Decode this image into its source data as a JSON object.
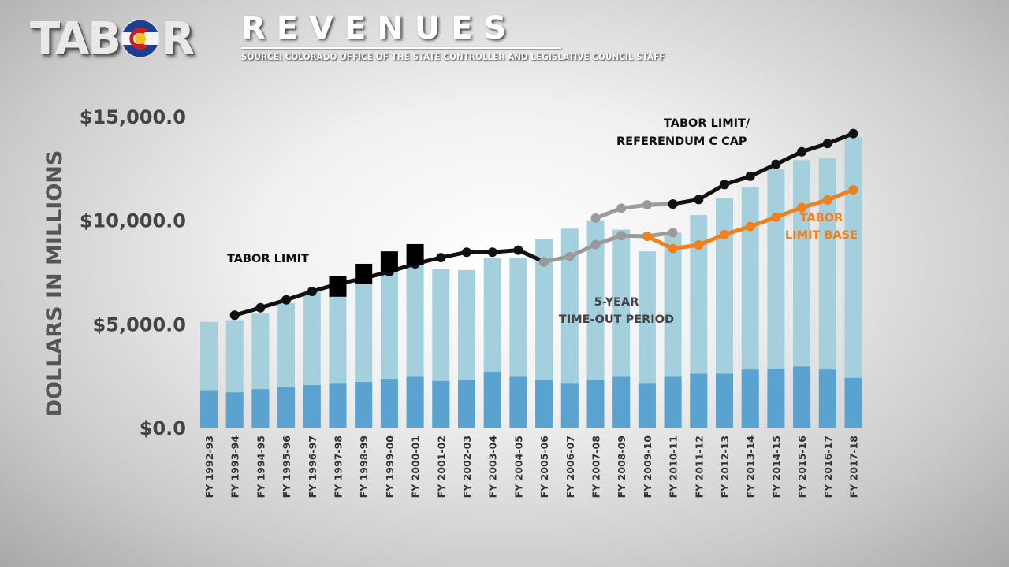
{
  "header": {
    "logo_text_left": "TAB",
    "logo_text_right": "R",
    "title": "REVENUES",
    "source": "SOURCE: COLORADO OFFICE OF THE STATE CONTROLLER AND LEGISLATIVE COUNCIL STAFF"
  },
  "colors": {
    "bar_upper": "#a4d0de",
    "bar_lower": "#5aa2cf",
    "tabor_limit": "#111111",
    "timeout_line": "#9a9a9a",
    "limit_base": "#f07f1e",
    "excess_marker": "#000000"
  },
  "chart_data": {
    "type": "bar",
    "ylabel": "DOLLARS IN MILLIONS",
    "ylim": [
      0,
      15000
    ],
    "y_ticks": [
      0,
      5000,
      10000,
      15000
    ],
    "y_tick_labels": [
      "$0.0",
      "$5,000.0",
      "$10,000.0",
      "$15,000.0"
    ],
    "categories": [
      "FY 1992-93",
      "FY 1993-94",
      "FY 1994-95",
      "FY 1995-96",
      "FY 1996-97",
      "FY 1997-98",
      "FY 1998-99",
      "FY 1999-00",
      "FY 2000-01",
      "FY 2001-02",
      "FY 2002-03",
      "FY 2003-04",
      "FY 2004-05",
      "FY 2005-06",
      "FY 2006-07",
      "FY 2007-08",
      "FY 2008-09",
      "FY 2009-10",
      "FY 2010-11",
      "FY 2011-12",
      "FY 2012-13",
      "FY 2013-14",
      "FY 2014-15",
      "FY 2015-16",
      "FY 2016-17",
      "FY 2017-18"
    ],
    "series": [
      {
        "values": [
          5100,
          5180,
          5500,
          6000,
          6550,
          7000,
          7400,
          7900,
          8200,
          7650,
          7600,
          8200,
          8200,
          9100,
          9600,
          10000,
          9550,
          8500,
          9400,
          10250,
          11050,
          11600,
          12450,
          12900,
          13000,
          14000
        ]
      },
      {
        "values": [
          1800,
          1700,
          1850,
          1950,
          2050,
          2150,
          2200,
          2350,
          2450,
          2250,
          2300,
          2700,
          2450,
          2300,
          2150,
          2300,
          2450,
          2150,
          2450,
          2600,
          2600,
          2800,
          2850,
          2950,
          2800,
          2400
        ]
      }
    ],
    "lines": [
      {
        "name": "TABOR LIMIT",
        "x_index": [
          1,
          2,
          3,
          4,
          5,
          6,
          7,
          8,
          9,
          10,
          11,
          12,
          13
        ],
        "values": [
          5420,
          5780,
          6160,
          6570,
          6930,
          7200,
          7520,
          7900,
          8200,
          8460,
          8460,
          8560,
          8000
        ]
      },
      {
        "x_index": [
          13,
          14,
          15,
          16,
          17,
          18
        ],
        "values": [
          8000,
          8250,
          8830,
          9260,
          9230,
          9400
        ]
      },
      {
        "x_index": [
          15,
          16,
          17,
          18
        ],
        "values": [
          10100,
          10580,
          10740,
          10780
        ]
      },
      {
        "name": "TABOR LIMIT/ REFERENDUM C CAP",
        "x_index": [
          18,
          19,
          20,
          21,
          22,
          23,
          24,
          25
        ],
        "values": [
          10780,
          11000,
          11720,
          12120,
          12700,
          13300,
          13700,
          14180
        ]
      },
      {
        "name": "TABOR LIMIT BASE",
        "x_index": [
          17,
          18,
          19,
          20,
          21,
          22,
          23,
          24,
          25
        ],
        "values": [
          9230,
          8630,
          8810,
          9310,
          9700,
          10150,
          10610,
          10980,
          11470
        ]
      }
    ],
    "excess_markers": [
      {
        "x_index": 5,
        "value": 7300
      },
      {
        "x_index": 6,
        "value": 7900
      },
      {
        "x_index": 7,
        "value": 8500
      },
      {
        "x_index": 8,
        "value": 8850
      }
    ],
    "annotations": {
      "tabor_limit": "TABOR LIMIT",
      "ref_c_line1": "TABOR LIMIT/",
      "ref_c_line2": "REFERENDUM C CAP",
      "timeout_line1": "5-YEAR",
      "timeout_line2": "TIME-OUT PERIOD",
      "limit_base_line1": "TABOR",
      "limit_base_line2": "LIMIT BASE"
    }
  }
}
